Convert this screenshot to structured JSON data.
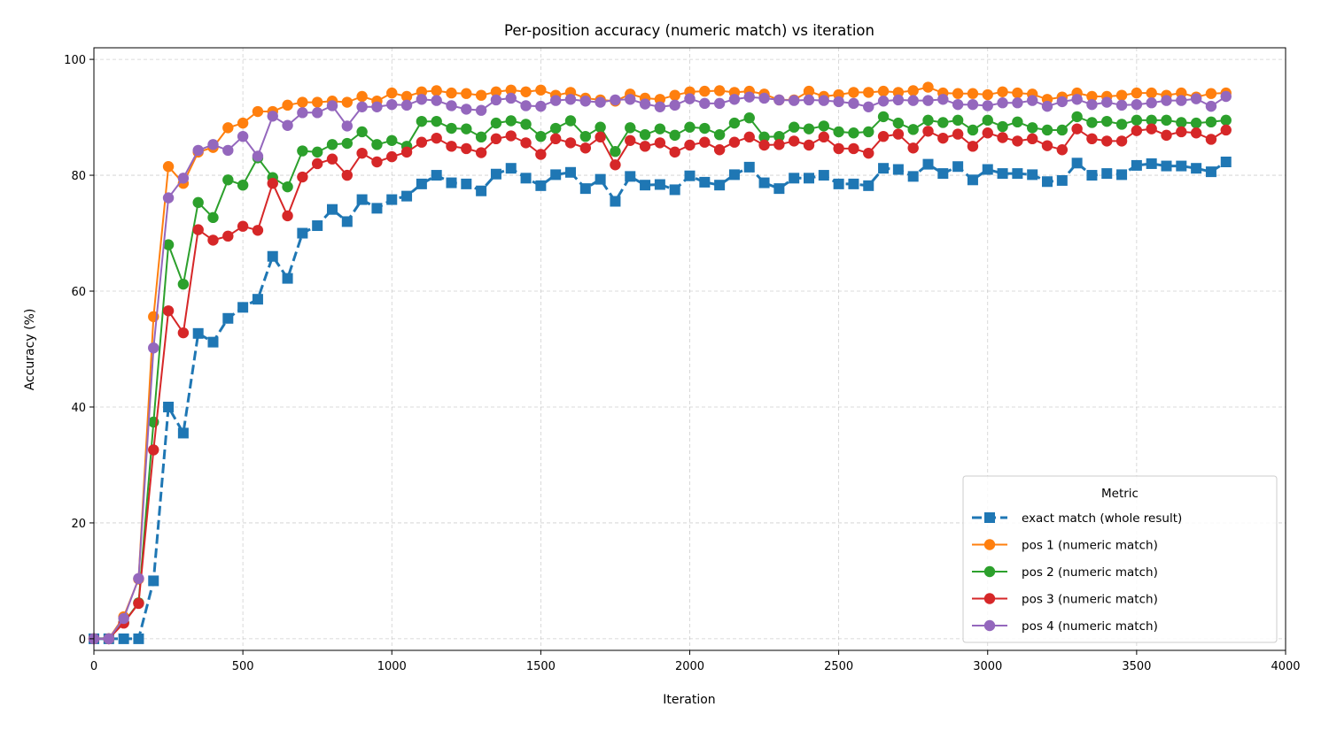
{
  "chart_data": {
    "type": "line",
    "title": "Per-position accuracy (numeric match) vs iteration",
    "xlabel": "Iteration",
    "ylabel": "Accuracy (%)",
    "xlim": [
      0,
      4000
    ],
    "ylim": [
      -2,
      102
    ],
    "xticks": [
      0,
      500,
      1000,
      1500,
      2000,
      2500,
      3000,
      3500,
      4000
    ],
    "yticks": [
      0,
      20,
      40,
      60,
      80,
      100
    ],
    "grid": true,
    "legend": {
      "title": "Metric",
      "position": "lower-right"
    },
    "x": [
      0,
      50,
      100,
      150,
      200,
      250,
      300,
      350,
      400,
      450,
      500,
      550,
      600,
      650,
      700,
      750,
      800,
      850,
      900,
      950,
      1000,
      1050,
      1100,
      1150,
      1200,
      1250,
      1300,
      1350,
      1400,
      1450,
      1500,
      1550,
      1600,
      1650,
      1700,
      1750,
      1800,
      1850,
      1900,
      1950,
      2000,
      2050,
      2100,
      2150,
      2200,
      2250,
      2300,
      2350,
      2400,
      2450,
      2500,
      2550,
      2600,
      2650,
      2700,
      2750,
      2800,
      2850,
      2900,
      2950,
      3000,
      3050,
      3100,
      3150,
      3200,
      3250,
      3300,
      3350,
      3400,
      3450,
      3500,
      3550,
      3600,
      3650,
      3700,
      3750,
      3800
    ],
    "series": [
      {
        "name": "exact match (whole result)",
        "color": "#1f77b4",
        "marker": "square",
        "linestyle": "dashed",
        "values": [
          0,
          0,
          0,
          0,
          10,
          40,
          35.5,
          52.7,
          51.2,
          55.3,
          57.2,
          58.6,
          66,
          62.2,
          70,
          71.3,
          74.1,
          72,
          75.8,
          74.3,
          75.8,
          76.4,
          78.5,
          80,
          78.7,
          78.5,
          77.3,
          80.2,
          81.2,
          79.5,
          78.2,
          80.1,
          80.5,
          77.7,
          79.3,
          75.5,
          79.8,
          78.3,
          78.4,
          77.5,
          79.9,
          78.8,
          78.3,
          80.1,
          81.4,
          78.7,
          77.7,
          79.5,
          79.5,
          80,
          78.5,
          78.5,
          78.2,
          81.2,
          81,
          79.8,
          81.9,
          80.3,
          81.5,
          79.2,
          81,
          80.3,
          80.3,
          80.1,
          78.9,
          79.1,
          82.1,
          80,
          80.3,
          80.1,
          81.7,
          82,
          81.6,
          81.6,
          81.2,
          80.6,
          82.3
        ]
      },
      {
        "name": "pos 1 (numeric match)",
        "color": "#ff7f0e",
        "marker": "circle",
        "linestyle": "solid",
        "values": [
          0,
          0,
          3.8,
          10.3,
          55.6,
          81.5,
          78.6,
          84,
          84.8,
          88.2,
          89,
          91,
          91,
          92.1,
          92.6,
          92.6,
          92.8,
          92.6,
          93.6,
          92.8,
          94.2,
          93.6,
          94.4,
          94.6,
          94.2,
          94.1,
          93.8,
          94.4,
          94.7,
          94.4,
          94.7,
          93.8,
          94.3,
          93.3,
          93,
          92.8,
          94,
          93.3,
          93.1,
          93.8,
          94.4,
          94.5,
          94.6,
          94.3,
          94.5,
          94,
          93,
          93,
          94.5,
          93.6,
          93.9,
          94.3,
          94.3,
          94.5,
          94.3,
          94.6,
          95.2,
          94.2,
          94.1,
          94.1,
          93.9,
          94.4,
          94.2,
          94,
          93.1,
          93.5,
          94.2,
          93.6,
          93.6,
          93.8,
          94.2,
          94.2,
          93.8,
          94.2,
          93.5,
          94.1,
          94.2
        ]
      },
      {
        "name": "pos 2 (numeric match)",
        "color": "#2ca02c",
        "marker": "circle",
        "linestyle": "solid",
        "values": [
          0,
          0,
          2.8,
          6.2,
          37.4,
          68,
          61.2,
          75.3,
          72.7,
          79.2,
          78.3,
          83,
          79.6,
          78,
          84.2,
          84,
          85.3,
          85.5,
          87.5,
          85.3,
          86,
          85,
          89.3,
          89.3,
          88.1,
          88,
          86.6,
          89,
          89.4,
          88.8,
          86.7,
          88.1,
          89.4,
          86.7,
          88.3,
          84.1,
          88.2,
          87,
          88,
          86.9,
          88.3,
          88.1,
          87,
          89,
          89.9,
          86.6,
          86.7,
          88.3,
          88,
          88.5,
          87.5,
          87.3,
          87.5,
          90.1,
          89,
          87.9,
          89.5,
          89.1,
          89.5,
          87.8,
          89.5,
          88.4,
          89.2,
          88.2,
          87.8,
          87.8,
          90.1,
          89.1,
          89.3,
          88.8,
          89.5,
          89.5,
          89.5,
          89.1,
          89,
          89.2,
          89.5
        ]
      },
      {
        "name": "pos 3 (numeric match)",
        "color": "#d62728",
        "marker": "circle",
        "linestyle": "solid",
        "values": [
          0,
          0,
          2.7,
          6.1,
          32.6,
          56.6,
          52.8,
          70.6,
          68.8,
          69.5,
          71.2,
          70.5,
          78.6,
          73,
          79.7,
          82,
          82.8,
          80,
          83.8,
          82.3,
          83.2,
          84,
          85.7,
          86.4,
          85,
          84.6,
          83.9,
          86.3,
          86.8,
          85.6,
          83.6,
          86.3,
          85.6,
          84.7,
          86.6,
          81.8,
          86,
          85,
          85.6,
          84,
          85.2,
          85.7,
          84.4,
          85.7,
          86.6,
          85.2,
          85.3,
          85.9,
          85.2,
          86.6,
          84.6,
          84.6,
          83.8,
          86.7,
          87.1,
          84.7,
          87.6,
          86.4,
          87.1,
          85,
          87.3,
          86.5,
          85.9,
          86.3,
          85.1,
          84.4,
          88,
          86.3,
          85.9,
          85.9,
          87.7,
          88,
          86.9,
          87.5,
          87.3,
          86.2,
          87.8
        ]
      },
      {
        "name": "pos 4 (numeric match)",
        "color": "#9467bd",
        "marker": "circle",
        "linestyle": "solid",
        "values": [
          0,
          0,
          3.5,
          10.4,
          50.2,
          76.1,
          79.5,
          84.3,
          85.3,
          84.3,
          86.7,
          83.3,
          90.2,
          88.6,
          90.8,
          90.8,
          92,
          88.5,
          91.8,
          91.8,
          92.2,
          92.1,
          93.1,
          92.9,
          92,
          91.4,
          91.2,
          93,
          93.3,
          92,
          91.9,
          92.9,
          93.1,
          92.8,
          92.6,
          93,
          93.1,
          92.3,
          91.8,
          92.1,
          93.2,
          92.4,
          92.4,
          93.1,
          93.5,
          93.3,
          93,
          92.9,
          93,
          92.9,
          92.7,
          92.4,
          91.8,
          92.8,
          93,
          92.9,
          92.9,
          93.1,
          92.2,
          92.2,
          92,
          92.5,
          92.5,
          92.9,
          91.9,
          92.7,
          93.1,
          92.2,
          92.6,
          92.1,
          92.2,
          92.5,
          92.9,
          92.9,
          93.2,
          91.9,
          93.6
        ]
      }
    ]
  }
}
